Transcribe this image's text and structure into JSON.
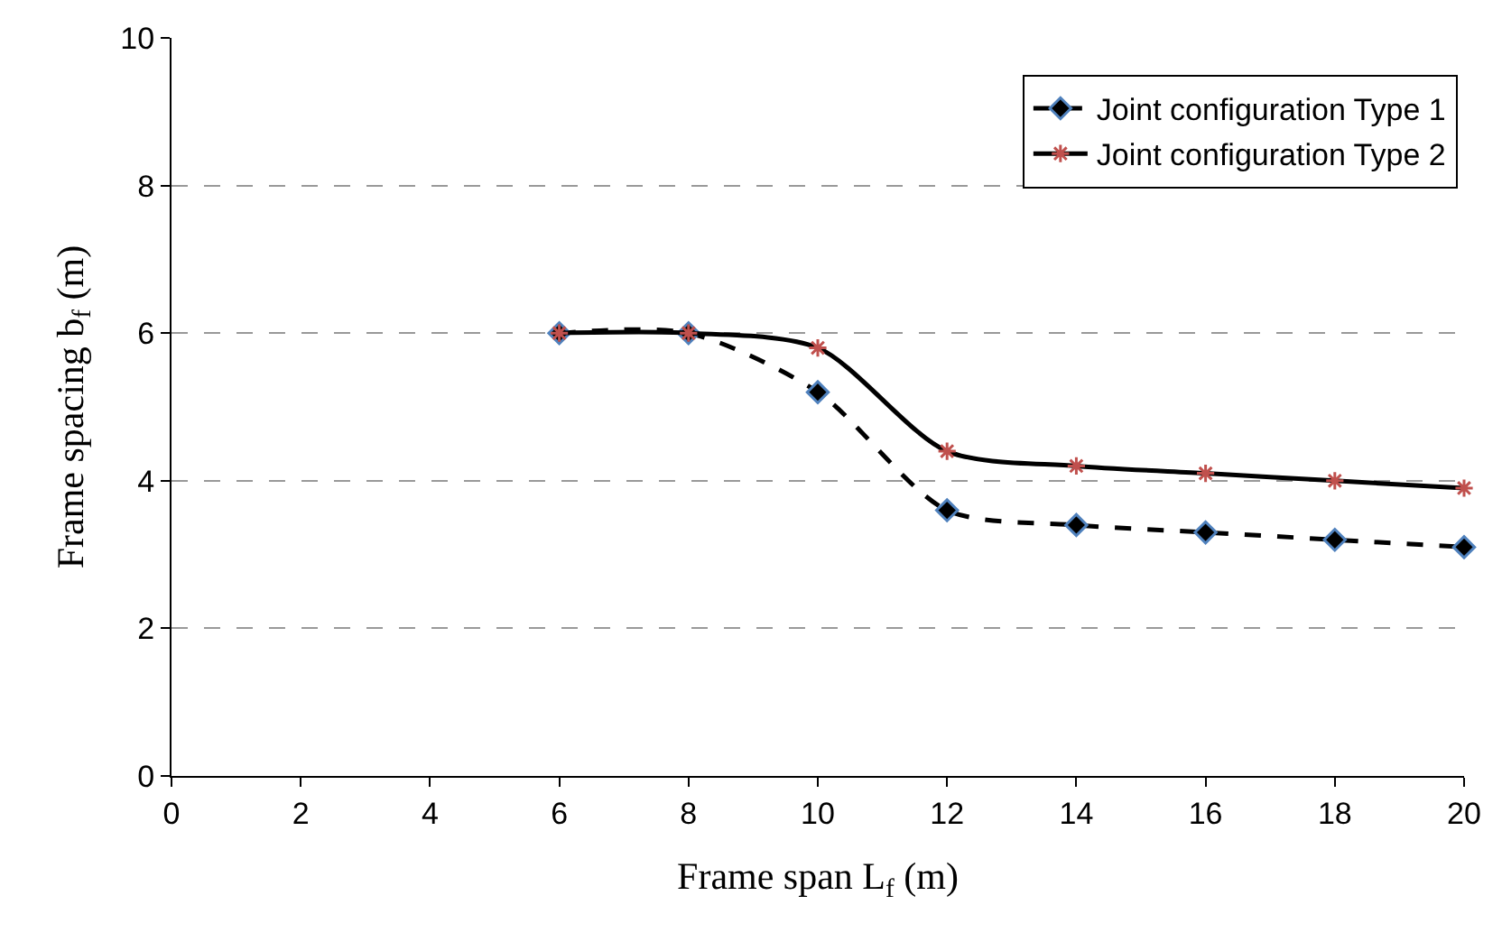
{
  "chart_data": {
    "type": "line",
    "xlabel": "Frame span L$_{f}$ (m)",
    "ylabel": "Frame spacing b$_{f}$ (m)",
    "x": [
      6,
      8,
      10,
      12,
      14,
      16,
      18,
      20
    ],
    "series": [
      {
        "name": "Joint configuration Type 1",
        "color": "#000000",
        "values": [
          6,
          6,
          5.2,
          3.6,
          3.4,
          3.3,
          3.2,
          3.1
        ],
        "line_style": "dashed",
        "marker": "diamond"
      },
      {
        "name": "Joint configuration Type 2",
        "color": "#000000",
        "values": [
          6,
          6,
          5.8,
          4.4,
          4.2,
          4.1,
          4.0,
          3.9
        ],
        "line_style": "solid",
        "marker": "cross"
      }
    ],
    "xlim": [
      0,
      20
    ],
    "xticks": [
      0,
      2,
      4,
      6,
      8,
      10,
      12,
      14,
      16,
      18,
      20
    ],
    "ylim": [
      0,
      10
    ],
    "yticks": [
      0,
      2,
      4,
      6,
      8,
      10
    ],
    "grid": "y",
    "legend": "top right"
  }
}
